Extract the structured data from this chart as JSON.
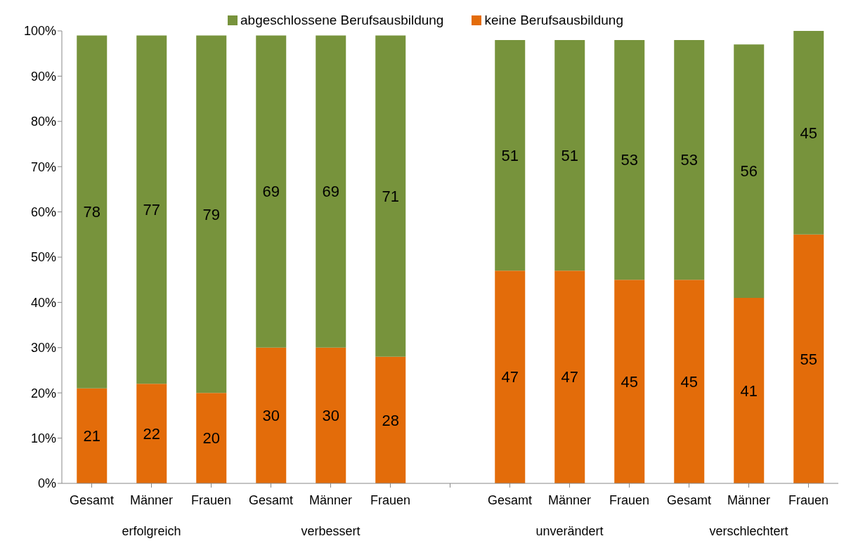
{
  "chart_data": {
    "type": "bar",
    "stacked": true,
    "categories": [
      "Gesamt",
      "Männer",
      "Frauen",
      "Gesamt",
      "Männer",
      "Frauen",
      null,
      "Gesamt",
      "Männer",
      "Frauen",
      "Gesamt",
      "Männer",
      "Frauen"
    ],
    "series": [
      {
        "name": "keine Berufsausbildung",
        "color": "#e36c0a",
        "values": [
          21,
          22,
          20,
          30,
          30,
          28,
          null,
          47,
          47,
          45,
          45,
          41,
          55
        ]
      },
      {
        "name": "abgeschlossene Berufsausbildung",
        "color": "#77933c",
        "values": [
          78,
          77,
          79,
          69,
          69,
          71,
          null,
          51,
          51,
          53,
          53,
          56,
          45
        ]
      }
    ],
    "ylim": [
      0,
      100
    ],
    "yticks": [
      {
        "value": 0,
        "label": "0%"
      },
      {
        "value": 10,
        "label": "10%"
      },
      {
        "value": 20,
        "label": "20%"
      },
      {
        "value": 30,
        "label": "30%"
      },
      {
        "value": 40,
        "label": "40%"
      },
      {
        "value": 50,
        "label": "50%"
      },
      {
        "value": 60,
        "label": "60%"
      },
      {
        "value": 70,
        "label": "70%"
      },
      {
        "value": 80,
        "label": "80%"
      },
      {
        "value": 90,
        "label": "90%"
      },
      {
        "value": 100,
        "label": "100%"
      }
    ],
    "data_labels": true,
    "grid": false,
    "legend": "top",
    "annotations": [
      "erfolgreich",
      "verbessert",
      "unverändert",
      "verschlechtert"
    ]
  }
}
